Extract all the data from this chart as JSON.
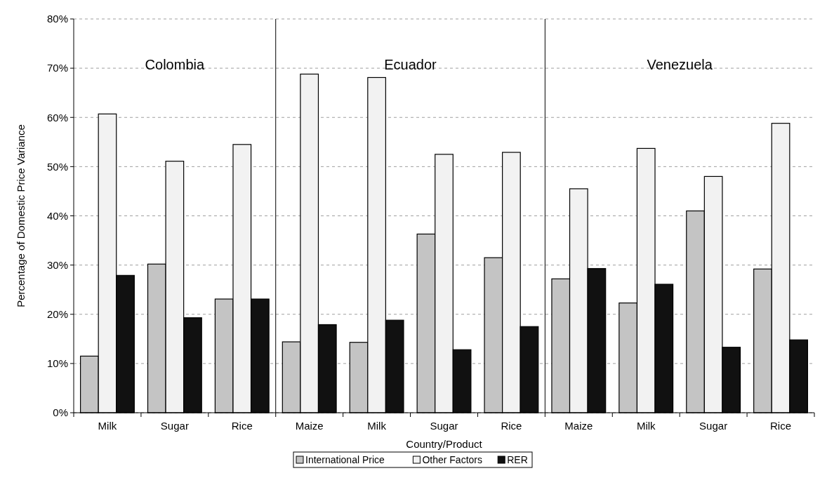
{
  "chart_data": {
    "type": "bar",
    "xlabel": "Country/Product",
    "ylabel": "Percentage of Domestic Price Variance",
    "categories": [
      "Milk",
      "Sugar",
      "Rice",
      "Maize",
      "Milk",
      "Sugar",
      "Rice",
      "Maize",
      "Milk",
      "Sugar",
      "Rice"
    ],
    "series": [
      {
        "name": "International Price",
        "color": "#c4c4c4",
        "values": [
          11.5,
          30.2,
          23.1,
          14.4,
          14.3,
          36.3,
          31.5,
          27.2,
          22.3,
          41.0,
          29.2
        ]
      },
      {
        "name": "Other Factors",
        "color": "#f2f2f2",
        "values": [
          60.7,
          51.1,
          54.5,
          68.8,
          68.1,
          52.5,
          52.9,
          45.5,
          53.7,
          48.0,
          58.8
        ]
      },
      {
        "name": "RER",
        "color": "#111111",
        "values": [
          27.9,
          19.3,
          23.1,
          17.9,
          18.8,
          12.8,
          17.5,
          29.3,
          26.1,
          13.3,
          14.8
        ]
      }
    ],
    "ylim": [
      0,
      80
    ],
    "yticks": [
      {
        "value": 0,
        "label": "0%"
      },
      {
        "value": 10,
        "label": "10%"
      },
      {
        "value": 20,
        "label": "20%"
      },
      {
        "value": 30,
        "label": "30%"
      },
      {
        "value": 40,
        "label": "40%"
      },
      {
        "value": 50,
        "label": "50%"
      },
      {
        "value": 60,
        "label": "60%"
      },
      {
        "value": 70,
        "label": "70%"
      },
      {
        "value": 80,
        "label": "80%"
      }
    ],
    "grid": "y",
    "legend": "bottom",
    "annotations": [
      "Colombia",
      "Ecuador",
      "Venezuela"
    ]
  }
}
